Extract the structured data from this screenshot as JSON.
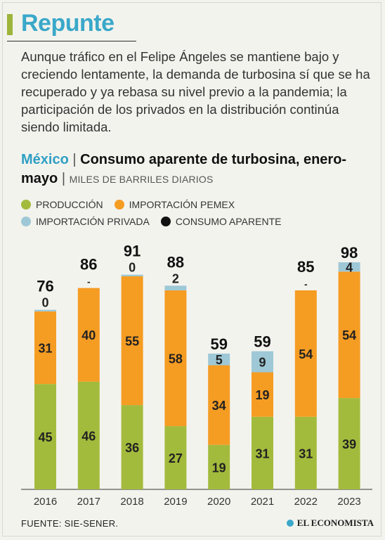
{
  "header": {
    "title": "Repunte",
    "intro": "Aunque tráfico en el Felipe Ángeles se mantiene bajo y creciendo lentamente, la demanda de turbosina sí que se ha recuperado y ya rebasa su nivel previo a la pandemia; la participación de los privados en la distribución continúa siendo limitada."
  },
  "chart_head": {
    "country": "México",
    "separator": "|",
    "title": "Consumo aparente de turbosina, enero-mayo",
    "units_separator": "|",
    "units": "MILES DE BARRILES DIARIOS"
  },
  "legend": {
    "produccion": "PRODUCCIÓN",
    "importacion_pemex": "IMPORTACIÓN PEMEX",
    "importacion_privada": "IMPORTACIÓN PRIVADA",
    "consumo_aparente": "CONSUMO APARENTE"
  },
  "colors": {
    "produccion": "#a3bb3c",
    "importacion_pemex": "#f59c23",
    "importacion_privada": "#9ec8d6",
    "consumo_aparente": "#111111"
  },
  "chart_data": {
    "type": "bar",
    "stacked": true,
    "categories": [
      "2016",
      "2017",
      "2018",
      "2019",
      "2020",
      "2021",
      "2022",
      "2023"
    ],
    "series": [
      {
        "name": "PRODUCCIÓN",
        "values": [
          45,
          46,
          36,
          27,
          19,
          31,
          31,
          39
        ]
      },
      {
        "name": "IMPORTACIÓN PEMEX",
        "values": [
          31,
          40,
          55,
          58,
          34,
          19,
          54,
          54
        ]
      },
      {
        "name": "IMPORTACIÓN PRIVADA",
        "values": [
          0,
          null,
          0,
          2,
          5,
          9,
          null,
          4
        ]
      }
    ],
    "private_labels": [
      "0",
      "-",
      "0",
      "2",
      "5",
      "9",
      "-",
      "4"
    ],
    "totals": [
      76,
      86,
      91,
      88,
      59,
      59,
      85,
      98
    ],
    "ylim": [
      0,
      100
    ],
    "grid": false,
    "legend_position": "top-left"
  },
  "footer": {
    "source": "FUENTE: SIE-SENER.",
    "logo": "EL ECONOMISTA"
  }
}
